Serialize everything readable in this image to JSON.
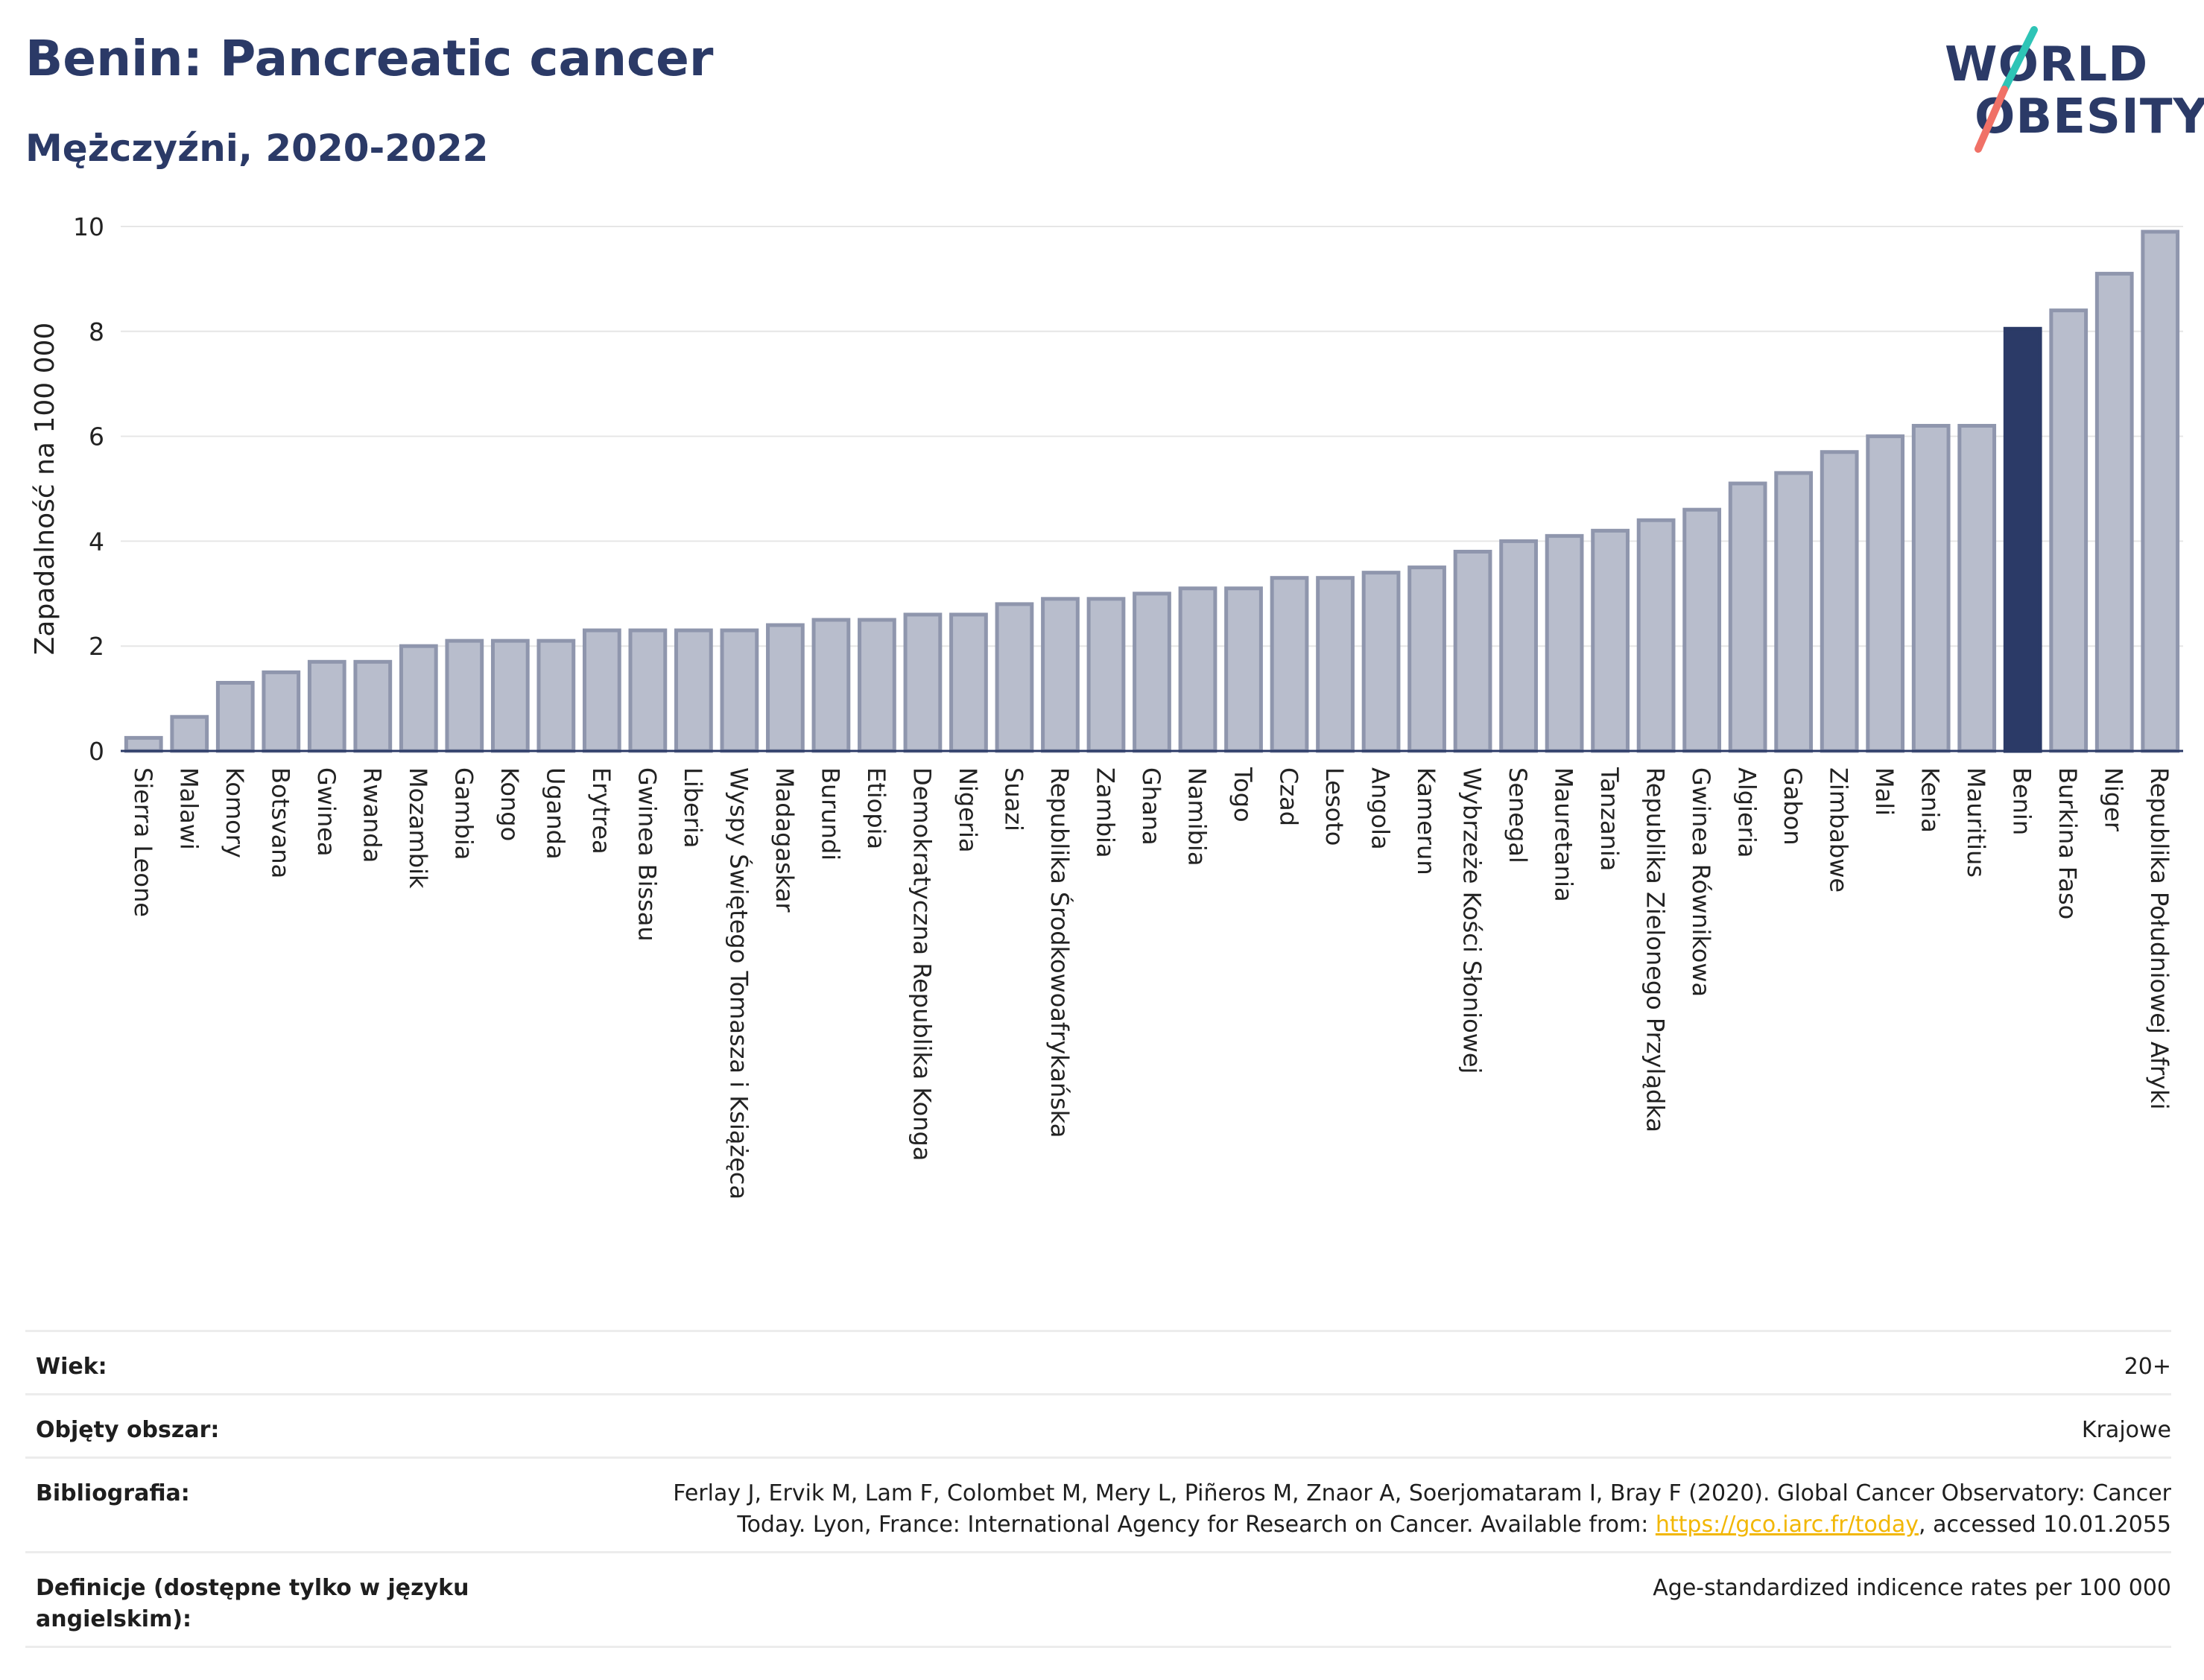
{
  "header": {
    "title": "Benin: Pancreatic cancer",
    "subtitle": "Mężczyźni, 2020-2022"
  },
  "logo": {
    "line1": "WORLD",
    "line2": "OBESITY"
  },
  "colors": {
    "bar": "#b8bdcc",
    "bar_stroke": "#8f96ad",
    "highlight": "#2b3a67",
    "title": "#2b3a67",
    "link": "#f2b705"
  },
  "chart_data": {
    "type": "bar",
    "ylabel": "Zapadalność na 100 000",
    "ylim": [
      0,
      10
    ],
    "yticks": [
      0,
      2,
      4,
      6,
      8,
      10
    ],
    "highlight": "Benin",
    "grid": true,
    "categories": [
      "Sierra Leone",
      "Malawi",
      "Komory",
      "Botsvana",
      "Gwinea",
      "Rwanda",
      "Mozambik",
      "Gambia",
      "Kongo",
      "Uganda",
      "Erytrea",
      "Gwinea Bissau",
      "Liberia",
      "Wyspy Świętego Tomasza i Książęca",
      "Madagaskar",
      "Burundi",
      "Etiopia",
      "Demokratyczna Republika Konga",
      "Nigeria",
      "Suazi",
      "Republika Środkowoafrykańska",
      "Zambia",
      "Ghana",
      "Namibia",
      "Togo",
      "Czad",
      "Lesoto",
      "Angola",
      "Kamerun",
      "Wybrzeże Kości Słoniowej",
      "Senegal",
      "Mauretania",
      "Tanzania",
      "Republika Zielonego Przylądka",
      "Gwinea Równikowa",
      "Algieria",
      "Gabon",
      "Zimbabwe",
      "Mali",
      "Kenia",
      "Mauritius",
      "Benin",
      "Burkina Faso",
      "Niger",
      "Republika Południowej Afryki"
    ],
    "values": [
      0.25,
      0.65,
      1.3,
      1.5,
      1.7,
      1.7,
      2.0,
      2.1,
      2.1,
      2.1,
      2.3,
      2.3,
      2.3,
      2.3,
      2.4,
      2.5,
      2.5,
      2.6,
      2.6,
      2.8,
      2.9,
      2.9,
      3.0,
      3.1,
      3.1,
      3.3,
      3.3,
      3.4,
      3.5,
      3.8,
      4.0,
      4.1,
      4.2,
      4.4,
      4.6,
      5.1,
      5.3,
      5.7,
      6.0,
      6.2,
      6.2,
      8.05,
      8.4,
      9.1,
      9.9
    ]
  },
  "meta": [
    {
      "key": "Wiek:",
      "value": "20+"
    },
    {
      "key": "Objęty obszar:",
      "value": "Krajowe"
    },
    {
      "key": "Bibliografia:",
      "value_line1": "Ferlay J, Ervik M, Lam F, Colombet M, Mery L, Piñeros M, Znaor A, Soerjomataram I, Bray F (2020). Global Cancer Observatory: Cancer",
      "value_line2_pre": "Today. Lyon, France: International Agency for Research on Cancer. Available from: ",
      "link": "https://gco.iarc.fr/today",
      "value_line2_post": ", accessed 10.01.2055"
    },
    {
      "key": "Definicje (dostępne tylko w języku angielskim):",
      "value": "Age-standardized indicence rates per 100 000"
    }
  ]
}
